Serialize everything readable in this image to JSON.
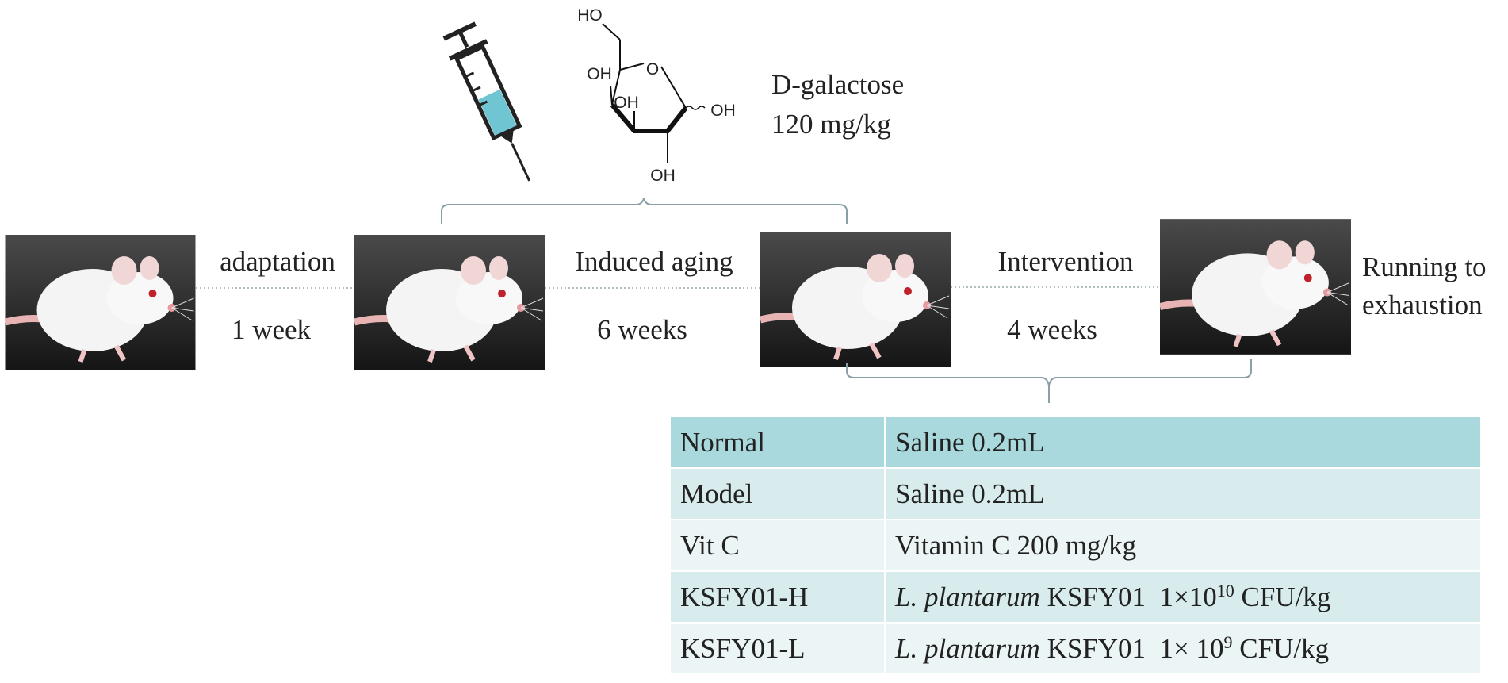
{
  "galactose": {
    "name": "D-galactose",
    "dose": "120 mg/kg"
  },
  "molecule": {
    "labels": [
      "HO",
      "OH",
      "OH",
      "OH",
      "OH"
    ]
  },
  "steps": [
    {
      "label": "adaptation",
      "duration": "1 week"
    },
    {
      "label": "Induced aging",
      "duration": "6 weeks"
    },
    {
      "label": "Intervention",
      "duration": "4 weeks"
    }
  ],
  "endpoint": [
    "Running to",
    "exhaustion"
  ],
  "table": {
    "rows": [
      {
        "group": "Normal",
        "treatment": [
          "Saline 0.2mL"
        ]
      },
      {
        "group": "Model",
        "treatment": [
          "Saline 0.2mL"
        ]
      },
      {
        "group": "Vit C",
        "treatment": [
          "Vitamin C 200 mg/kg"
        ]
      },
      {
        "group": "KSFY01-H",
        "treatment": [
          "L. plantarum",
          " KSFY01  1×10",
          "10",
          " CFU/kg"
        ]
      },
      {
        "group": "KSFY01-L",
        "treatment": [
          "L. plantarum",
          " KSFY01  1× 10",
          "9",
          " CFU/kg"
        ]
      }
    ]
  }
}
